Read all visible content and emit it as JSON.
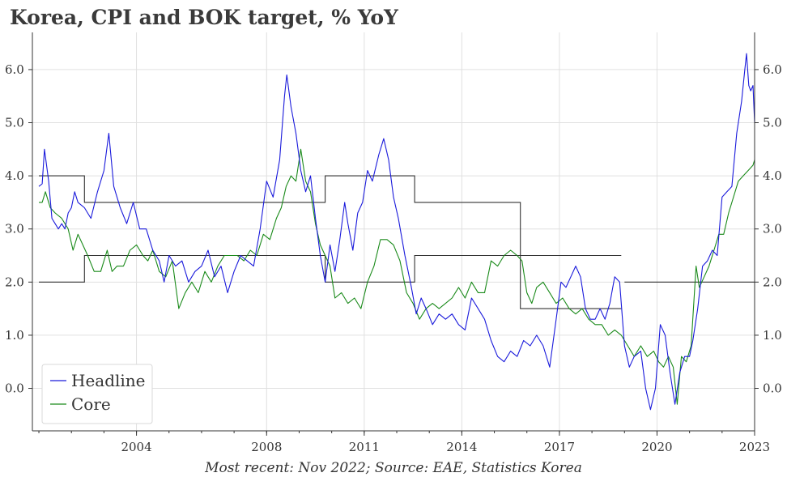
{
  "chart_data": {
    "type": "line",
    "title": "Korea, CPI and BOK target, % YoY",
    "source": "Most recent: Nov 2022; Source: EAE, Statistics Korea",
    "xlabel": "",
    "ylabel": "",
    "xlim": [
      2000.8,
      2023.0
    ],
    "ylim": [
      -0.8,
      6.7
    ],
    "x_ticks": [
      "2004",
      "2008",
      "2011",
      "2014",
      "2017",
      "2020",
      "2023"
    ],
    "x_tick_values": [
      2004,
      2008,
      2011,
      2014,
      2017,
      2020,
      2023
    ],
    "y_ticks": [
      "0.0",
      "1.0",
      "2.0",
      "3.0",
      "4.0",
      "5.0",
      "6.0"
    ],
    "y_tick_values": [
      0,
      1,
      2,
      3,
      4,
      5,
      6
    ],
    "y_axis_both_sides": true,
    "grid": true,
    "legend_position": "bottom-left",
    "colors": {
      "headline": "#1a1adb",
      "core": "#1a8a1a",
      "target": "#333333"
    },
    "series": [
      {
        "name": "Headline",
        "color": "#1a1adb",
        "points": [
          [
            2001.0,
            3.8
          ],
          [
            2001.1,
            3.85
          ],
          [
            2001.17,
            4.5
          ],
          [
            2001.3,
            3.9
          ],
          [
            2001.4,
            3.2
          ],
          [
            2001.5,
            3.1
          ],
          [
            2001.6,
            3.0
          ],
          [
            2001.7,
            3.1
          ],
          [
            2001.8,
            3.0
          ],
          [
            2001.9,
            3.3
          ],
          [
            2002.0,
            3.4
          ],
          [
            2002.1,
            3.7
          ],
          [
            2002.2,
            3.5
          ],
          [
            2002.4,
            3.4
          ],
          [
            2002.6,
            3.2
          ],
          [
            2002.8,
            3.7
          ],
          [
            2003.0,
            4.1
          ],
          [
            2003.15,
            4.8
          ],
          [
            2003.3,
            3.8
          ],
          [
            2003.5,
            3.4
          ],
          [
            2003.7,
            3.1
          ],
          [
            2003.9,
            3.5
          ],
          [
            2004.1,
            3.0
          ],
          [
            2004.3,
            3.0
          ],
          [
            2004.5,
            2.6
          ],
          [
            2004.7,
            2.4
          ],
          [
            2004.85,
            2.0
          ],
          [
            2005.0,
            2.5
          ],
          [
            2005.2,
            2.3
          ],
          [
            2005.4,
            2.4
          ],
          [
            2005.6,
            2.0
          ],
          [
            2005.8,
            2.2
          ],
          [
            2006.0,
            2.3
          ],
          [
            2006.2,
            2.6
          ],
          [
            2006.4,
            2.1
          ],
          [
            2006.6,
            2.3
          ],
          [
            2006.8,
            1.8
          ],
          [
            2007.0,
            2.2
          ],
          [
            2007.2,
            2.5
          ],
          [
            2007.4,
            2.4
          ],
          [
            2007.6,
            2.3
          ],
          [
            2007.8,
            3.0
          ],
          [
            2008.0,
            3.9
          ],
          [
            2008.2,
            3.6
          ],
          [
            2008.4,
            4.3
          ],
          [
            2008.55,
            5.5
          ],
          [
            2008.62,
            5.9
          ],
          [
            2008.75,
            5.3
          ],
          [
            2008.9,
            4.8
          ],
          [
            2009.05,
            4.1
          ],
          [
            2009.2,
            3.7
          ],
          [
            2009.35,
            4.0
          ],
          [
            2009.5,
            3.2
          ],
          [
            2009.65,
            2.5
          ],
          [
            2009.8,
            2.0
          ],
          [
            2009.95,
            2.7
          ],
          [
            2010.1,
            2.2
          ],
          [
            2010.25,
            2.8
          ],
          [
            2010.4,
            3.5
          ],
          [
            2010.5,
            3.1
          ],
          [
            2010.65,
            2.6
          ],
          [
            2010.8,
            3.3
          ],
          [
            2010.95,
            3.5
          ],
          [
            2011.1,
            4.1
          ],
          [
            2011.25,
            3.9
          ],
          [
            2011.45,
            4.4
          ],
          [
            2011.6,
            4.7
          ],
          [
            2011.75,
            4.3
          ],
          [
            2011.9,
            3.6
          ],
          [
            2012.05,
            3.2
          ],
          [
            2012.25,
            2.5
          ],
          [
            2012.45,
            1.9
          ],
          [
            2012.6,
            1.4
          ],
          [
            2012.75,
            1.7
          ],
          [
            2012.9,
            1.5
          ],
          [
            2013.1,
            1.2
          ],
          [
            2013.3,
            1.4
          ],
          [
            2013.5,
            1.3
          ],
          [
            2013.7,
            1.4
          ],
          [
            2013.9,
            1.2
          ],
          [
            2014.1,
            1.1
          ],
          [
            2014.3,
            1.7
          ],
          [
            2014.5,
            1.5
          ],
          [
            2014.7,
            1.3
          ],
          [
            2014.9,
            0.9
          ],
          [
            2015.1,
            0.6
          ],
          [
            2015.3,
            0.5
          ],
          [
            2015.5,
            0.7
          ],
          [
            2015.7,
            0.6
          ],
          [
            2015.9,
            0.9
          ],
          [
            2016.1,
            0.8
          ],
          [
            2016.3,
            1.0
          ],
          [
            2016.5,
            0.8
          ],
          [
            2016.7,
            0.4
          ],
          [
            2016.9,
            1.3
          ],
          [
            2017.05,
            2.0
          ],
          [
            2017.2,
            1.9
          ],
          [
            2017.35,
            2.1
          ],
          [
            2017.5,
            2.3
          ],
          [
            2017.65,
            2.1
          ],
          [
            2017.8,
            1.5
          ],
          [
            2017.95,
            1.3
          ],
          [
            2018.1,
            1.3
          ],
          [
            2018.25,
            1.5
          ],
          [
            2018.4,
            1.3
          ],
          [
            2018.55,
            1.6
          ],
          [
            2018.7,
            2.1
          ],
          [
            2018.85,
            2.0
          ],
          [
            2019.0,
            0.8
          ],
          [
            2019.15,
            0.4
          ],
          [
            2019.3,
            0.6
          ],
          [
            2019.5,
            0.7
          ],
          [
            2019.65,
            0.0
          ],
          [
            2019.8,
            -0.4
          ],
          [
            2019.95,
            0.0
          ],
          [
            2020.1,
            1.2
          ],
          [
            2020.25,
            1.0
          ],
          [
            2020.4,
            0.3
          ],
          [
            2020.55,
            -0.3
          ],
          [
            2020.7,
            0.3
          ],
          [
            2020.85,
            0.6
          ],
          [
            2021.0,
            0.6
          ],
          [
            2021.1,
            0.9
          ],
          [
            2021.25,
            1.5
          ],
          [
            2021.4,
            2.3
          ],
          [
            2021.55,
            2.4
          ],
          [
            2021.7,
            2.6
          ],
          [
            2021.85,
            2.5
          ],
          [
            2022.0,
            3.6
          ],
          [
            2022.15,
            3.7
          ],
          [
            2022.3,
            3.8
          ],
          [
            2022.45,
            4.8
          ],
          [
            2022.6,
            5.4
          ],
          [
            2022.7,
            6.0
          ],
          [
            2022.75,
            6.3
          ],
          [
            2022.82,
            5.7
          ],
          [
            2022.88,
            5.6
          ],
          [
            2022.95,
            5.7
          ],
          [
            2023.0,
            5.0
          ]
        ]
      },
      {
        "name": "Core",
        "color": "#1a8a1a",
        "points": [
          [
            2001.0,
            3.5
          ],
          [
            2001.1,
            3.5
          ],
          [
            2001.2,
            3.7
          ],
          [
            2001.35,
            3.4
          ],
          [
            2001.5,
            3.3
          ],
          [
            2001.7,
            3.2
          ],
          [
            2001.9,
            3.0
          ],
          [
            2002.05,
            2.6
          ],
          [
            2002.2,
            2.9
          ],
          [
            2002.35,
            2.7
          ],
          [
            2002.5,
            2.5
          ],
          [
            2002.7,
            2.2
          ],
          [
            2002.9,
            2.2
          ],
          [
            2003.1,
            2.6
          ],
          [
            2003.25,
            2.2
          ],
          [
            2003.4,
            2.3
          ],
          [
            2003.6,
            2.3
          ],
          [
            2003.8,
            2.6
          ],
          [
            2004.0,
            2.7
          ],
          [
            2004.2,
            2.5
          ],
          [
            2004.35,
            2.4
          ],
          [
            2004.5,
            2.6
          ],
          [
            2004.7,
            2.2
          ],
          [
            2004.9,
            2.1
          ],
          [
            2005.1,
            2.4
          ],
          [
            2005.3,
            1.5
          ],
          [
            2005.5,
            1.8
          ],
          [
            2005.7,
            2.0
          ],
          [
            2005.9,
            1.8
          ],
          [
            2006.1,
            2.2
          ],
          [
            2006.3,
            2.0
          ],
          [
            2006.5,
            2.3
          ],
          [
            2006.7,
            2.5
          ],
          [
            2006.9,
            2.5
          ],
          [
            2007.1,
            2.5
          ],
          [
            2007.3,
            2.4
          ],
          [
            2007.5,
            2.6
          ],
          [
            2007.7,
            2.5
          ],
          [
            2007.9,
            2.9
          ],
          [
            2008.1,
            2.8
          ],
          [
            2008.3,
            3.2
          ],
          [
            2008.45,
            3.4
          ],
          [
            2008.6,
            3.8
          ],
          [
            2008.75,
            4.0
          ],
          [
            2008.9,
            3.9
          ],
          [
            2009.05,
            4.5
          ],
          [
            2009.2,
            3.9
          ],
          [
            2009.35,
            3.7
          ],
          [
            2009.5,
            3.1
          ],
          [
            2009.65,
            2.7
          ],
          [
            2009.8,
            2.5
          ],
          [
            2009.95,
            2.3
          ],
          [
            2010.1,
            1.7
          ],
          [
            2010.3,
            1.8
          ],
          [
            2010.5,
            1.6
          ],
          [
            2010.7,
            1.7
          ],
          [
            2010.9,
            1.5
          ],
          [
            2011.1,
            2.0
          ],
          [
            2011.3,
            2.3
          ],
          [
            2011.5,
            2.8
          ],
          [
            2011.7,
            2.8
          ],
          [
            2011.9,
            2.7
          ],
          [
            2012.1,
            2.4
          ],
          [
            2012.3,
            1.8
          ],
          [
            2012.5,
            1.6
          ],
          [
            2012.7,
            1.3
          ],
          [
            2012.9,
            1.5
          ],
          [
            2013.1,
            1.6
          ],
          [
            2013.3,
            1.5
          ],
          [
            2013.5,
            1.6
          ],
          [
            2013.7,
            1.7
          ],
          [
            2013.9,
            1.9
          ],
          [
            2014.1,
            1.7
          ],
          [
            2014.3,
            2.0
          ],
          [
            2014.5,
            1.8
          ],
          [
            2014.7,
            1.8
          ],
          [
            2014.9,
            2.4
          ],
          [
            2015.1,
            2.3
          ],
          [
            2015.3,
            2.5
          ],
          [
            2015.5,
            2.6
          ],
          [
            2015.7,
            2.5
          ],
          [
            2015.85,
            2.4
          ],
          [
            2016.0,
            1.8
          ],
          [
            2016.15,
            1.6
          ],
          [
            2016.3,
            1.9
          ],
          [
            2016.5,
            2.0
          ],
          [
            2016.7,
            1.8
          ],
          [
            2016.9,
            1.6
          ],
          [
            2017.1,
            1.7
          ],
          [
            2017.3,
            1.5
          ],
          [
            2017.5,
            1.4
          ],
          [
            2017.7,
            1.5
          ],
          [
            2017.9,
            1.3
          ],
          [
            2018.1,
            1.2
          ],
          [
            2018.3,
            1.2
          ],
          [
            2018.5,
            1.0
          ],
          [
            2018.7,
            1.1
          ],
          [
            2018.9,
            1.0
          ],
          [
            2019.1,
            0.8
          ],
          [
            2019.3,
            0.6
          ],
          [
            2019.5,
            0.8
          ],
          [
            2019.7,
            0.6
          ],
          [
            2019.9,
            0.7
          ],
          [
            2020.05,
            0.5
          ],
          [
            2020.2,
            0.4
          ],
          [
            2020.35,
            0.6
          ],
          [
            2020.5,
            0.4
          ],
          [
            2020.62,
            -0.3
          ],
          [
            2020.75,
            0.6
          ],
          [
            2020.9,
            0.5
          ],
          [
            2021.05,
            0.8
          ],
          [
            2021.2,
            2.3
          ],
          [
            2021.3,
            1.9
          ],
          [
            2021.45,
            2.1
          ],
          [
            2021.6,
            2.3
          ],
          [
            2021.75,
            2.6
          ],
          [
            2021.9,
            2.9
          ],
          [
            2022.05,
            2.9
          ],
          [
            2022.2,
            3.3
          ],
          [
            2022.35,
            3.6
          ],
          [
            2022.5,
            3.9
          ],
          [
            2022.65,
            4.0
          ],
          [
            2022.8,
            4.1
          ],
          [
            2022.95,
            4.2
          ],
          [
            2023.0,
            4.3
          ]
        ]
      }
    ],
    "target_lines": {
      "color": "#333333",
      "upper": [
        [
          2001.0,
          4.0
        ],
        [
          2002.4,
          4.0
        ],
        [
          2002.4,
          3.5
        ],
        [
          2009.8,
          3.5
        ],
        [
          2009.8,
          4.0
        ],
        [
          2012.55,
          4.0
        ],
        [
          2012.55,
          3.5
        ],
        [
          2015.8,
          3.5
        ],
        [
          2015.8,
          2.5
        ],
        [
          2018.9,
          2.5
        ]
      ],
      "lower": [
        [
          2001.0,
          2.0
        ],
        [
          2002.4,
          2.0
        ],
        [
          2002.4,
          2.5
        ],
        [
          2009.8,
          2.5
        ],
        [
          2009.8,
          2.0
        ],
        [
          2012.55,
          2.0
        ],
        [
          2012.55,
          2.5
        ],
        [
          2015.8,
          2.5
        ],
        [
          2015.8,
          1.5
        ],
        [
          2018.9,
          1.5
        ]
      ],
      "point_target": [
        [
          2019.0,
          2.0
        ],
        [
          2023.0,
          2.0
        ]
      ]
    }
  }
}
